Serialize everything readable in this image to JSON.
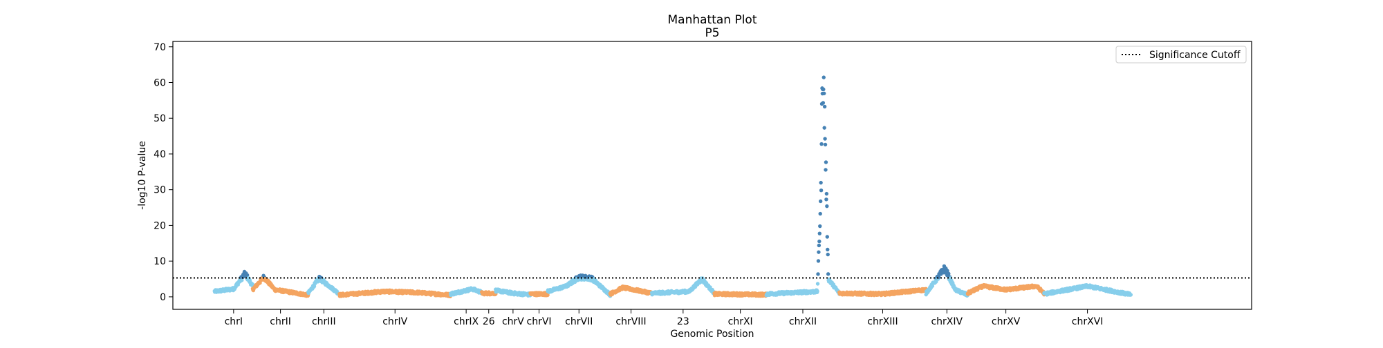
{
  "chart_data": {
    "type": "scatter",
    "title": "Manhattan Plot",
    "subtitle": "P5",
    "xlabel": "Genomic Position",
    "ylabel": "-log10 P-value",
    "ylim": [
      -3.5,
      71.5
    ],
    "yticks": [
      0,
      10,
      20,
      30,
      40,
      50,
      60,
      70
    ],
    "xlim": [
      0,
      1554
    ],
    "grid": false,
    "legend": {
      "placement": "top-right",
      "entries": [
        {
          "label": "Significance Cutoff",
          "style": "dotted"
        }
      ]
    },
    "threshold": 5.3,
    "colors": {
      "light": "#87ceeb",
      "orange": "#f4a460",
      "significant": "#4682b4"
    },
    "chromosomes": [
      {
        "label": "chrI",
        "start": 60,
        "end": 115,
        "color": "light",
        "profile": [
          [
            0,
            1.5
          ],
          [
            0.5,
            2.2
          ],
          [
            0.8,
            6.5
          ],
          [
            1,
            3
          ]
        ]
      },
      {
        "label": "chrII",
        "start": 115,
        "end": 195,
        "color": "orange",
        "profile": [
          [
            0,
            2
          ],
          [
            0.2,
            5.5
          ],
          [
            0.4,
            2
          ],
          [
            1,
            0.5
          ]
        ]
      },
      {
        "label": "chrIII",
        "start": 195,
        "end": 240,
        "color": "light",
        "profile": [
          [
            0,
            1
          ],
          [
            0.35,
            5.2
          ],
          [
            1,
            0.8
          ]
        ]
      },
      {
        "label": "chrIV",
        "start": 240,
        "end": 400,
        "color": "orange",
        "profile": [
          [
            0,
            0.5
          ],
          [
            0.4,
            1.5
          ],
          [
            0.7,
            1.2
          ],
          [
            1,
            0.5
          ]
        ]
      },
      {
        "label": "chrIX",
        "start": 400,
        "end": 445,
        "color": "light",
        "profile": [
          [
            0,
            0.8
          ],
          [
            0.7,
            2.2
          ],
          [
            1,
            1.2
          ]
        ]
      },
      {
        "label": "26",
        "start": 445,
        "end": 465,
        "color": "orange",
        "profile": [
          [
            0,
            1
          ],
          [
            1,
            1
          ]
        ]
      },
      {
        "label": "chrV",
        "start": 465,
        "end": 515,
        "color": "light",
        "profile": [
          [
            0,
            1.8
          ],
          [
            0.5,
            1
          ],
          [
            1,
            0.6
          ]
        ]
      },
      {
        "label": "chrVI",
        "start": 515,
        "end": 540,
        "color": "orange",
        "profile": [
          [
            0,
            0.8
          ],
          [
            1,
            0.8
          ]
        ]
      },
      {
        "label": "chrVII",
        "start": 540,
        "end": 630,
        "color": "light",
        "profile": [
          [
            0,
            1.5
          ],
          [
            0.3,
            3
          ],
          [
            0.5,
            5.5
          ],
          [
            0.7,
            5.2
          ],
          [
            1,
            0.6
          ]
        ]
      },
      {
        "label": "chrVIII",
        "start": 630,
        "end": 690,
        "color": "orange",
        "profile": [
          [
            0,
            0.8
          ],
          [
            0.3,
            2.6
          ],
          [
            1,
            1
          ]
        ]
      },
      {
        "label": "23",
        "start": 690,
        "end": 780,
        "color": "light",
        "profile": [
          [
            0,
            1
          ],
          [
            0.6,
            1.5
          ],
          [
            0.8,
            5
          ],
          [
            1,
            1
          ]
        ]
      },
      {
        "label": "chrXI",
        "start": 780,
        "end": 855,
        "color": "orange",
        "profile": [
          [
            0,
            0.8
          ],
          [
            1,
            0.6
          ]
        ]
      },
      {
        "label": "chrXII",
        "start": 855,
        "end": 960,
        "color": "light",
        "profile": [
          [
            0,
            0.8
          ],
          [
            0.7,
            1.5
          ],
          [
            0.75,
            30
          ],
          [
            0.77,
            65
          ],
          [
            0.8,
            50
          ],
          [
            0.85,
            5
          ],
          [
            1,
            1
          ]
        ]
      },
      {
        "label": "chrXIII",
        "start": 960,
        "end": 1085,
        "color": "orange",
        "profile": [
          [
            0,
            1
          ],
          [
            0.5,
            0.8
          ],
          [
            1,
            2
          ]
        ]
      },
      {
        "label": "chrXIV",
        "start": 1085,
        "end": 1145,
        "color": "light",
        "profile": [
          [
            0,
            1
          ],
          [
            0.45,
            8
          ],
          [
            0.7,
            2
          ],
          [
            1,
            0.5
          ]
        ]
      },
      {
        "label": "chrXV",
        "start": 1145,
        "end": 1255,
        "color": "orange",
        "profile": [
          [
            0,
            1
          ],
          [
            0.2,
            3
          ],
          [
            0.5,
            2
          ],
          [
            0.9,
            3
          ],
          [
            1,
            1
          ]
        ]
      },
      {
        "label": "chrXVI",
        "start": 1255,
        "end": 1380,
        "color": "light",
        "profile": [
          [
            0,
            0.8
          ],
          [
            0.5,
            3
          ],
          [
            1,
            0.6
          ]
        ]
      }
    ]
  }
}
